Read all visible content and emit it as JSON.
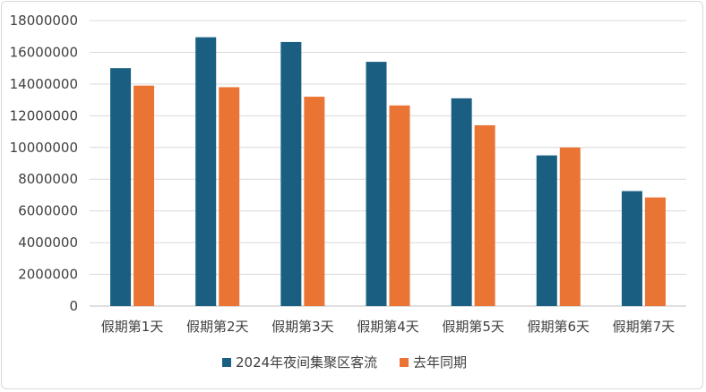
{
  "chart_data": {
    "type": "bar",
    "categories": [
      "假期第1天",
      "假期第2天",
      "假期第3天",
      "假期第4天",
      "假期第5天",
      "假期第6天",
      "假期第7天"
    ],
    "series": [
      {
        "name": "2024年夜间集聚区客流",
        "color": "#1a5f82",
        "values": [
          15000000,
          16950000,
          16650000,
          15400000,
          13100000,
          9500000,
          7250000
        ]
      },
      {
        "name": "去年同期",
        "color": "#ea7433",
        "values": [
          13900000,
          13800000,
          13200000,
          12650000,
          11400000,
          10000000,
          6850000
        ]
      }
    ],
    "yticks": [
      "0",
      "2000000",
      "4000000",
      "6000000",
      "8000000",
      "10000000",
      "12000000",
      "14000000",
      "16000000",
      "18000000"
    ],
    "ylim": [
      0,
      18000000
    ],
    "grid": true,
    "legend_position": "bottom"
  }
}
